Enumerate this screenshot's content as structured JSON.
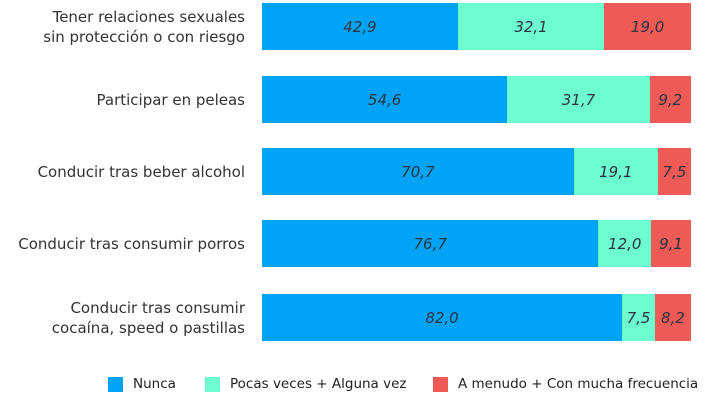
{
  "chart_data": {
    "type": "bar",
    "orientation": "horizontal",
    "stacked": true,
    "normalized": true,
    "categories": [
      "Tener relaciones sexuales\nsin protección o con riesgo",
      "Participar en peleas",
      "Conducir tras beber alcohol",
      "Conducir tras consumir porros",
      "Conducir tras consumir\ncocaína, speed o pastillas"
    ],
    "series": [
      {
        "name": "Nunca",
        "color": "#00a3f5",
        "values": [
          42.9,
          54.6,
          70.7,
          76.7,
          82.0
        ],
        "labels": [
          "42,9",
          "54,6",
          "70,7",
          "76,7",
          "82,0"
        ]
      },
      {
        "name": "Pocas veces + Alguna vez",
        "color": "#6dfccf",
        "values": [
          32.1,
          31.7,
          19.1,
          12.0,
          7.5
        ],
        "labels": [
          "32,1",
          "31,7",
          "19,1",
          "12,0",
          "7,5"
        ]
      },
      {
        "name": "A menudo + Con mucha frecuencia",
        "color": "#ee5a55",
        "values": [
          19.0,
          9.2,
          7.5,
          9.1,
          8.2
        ],
        "labels": [
          "19,0",
          "9,2",
          "7,5",
          "9,1",
          "8,2"
        ]
      }
    ],
    "legend_position": "bottom",
    "grid": false
  }
}
